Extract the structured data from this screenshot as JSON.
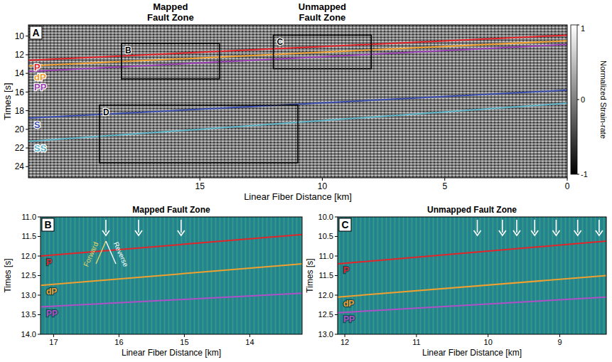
{
  "chart_data": [
    {
      "type": "line",
      "letter": "A",
      "x_label": "Linear Fiber Distance [km]",
      "y_label": "Times [s]",
      "xlim": [
        22,
        0
      ],
      "ylim": [
        8.8,
        25.2
      ],
      "xticks": [
        15,
        10,
        5,
        0
      ],
      "yticks": [
        10,
        12,
        14,
        16,
        18,
        20,
        22,
        24
      ],
      "x": [
        22,
        0
      ],
      "series": [
        {
          "name": "P",
          "color": "#e3242b",
          "values": [
            12.6,
            9.9
          ]
        },
        {
          "name": "dP",
          "color": "#f0a030",
          "values": [
            13.2,
            10.5
          ]
        },
        {
          "name": "PP",
          "color": "#9b3fb5",
          "values": [
            13.8,
            10.9
          ]
        },
        {
          "name": "S",
          "color": "#3b4fb0",
          "values": [
            18.8,
            15.8
          ]
        },
        {
          "name": "SS",
          "color": "#5fb5c8",
          "values": [
            21.3,
            17.2
          ]
        }
      ],
      "boxes": [
        {
          "label": "B",
          "x": [
            18.2,
            14.2
          ],
          "y": [
            10.8,
            14.6
          ]
        },
        {
          "label": "C",
          "x": [
            12.0,
            8.0
          ],
          "y": [
            9.9,
            13.5
          ]
        },
        {
          "label": "D",
          "x": [
            19.1,
            11.0
          ],
          "y": [
            17.4,
            23.6
          ]
        }
      ],
      "annotations": [
        {
          "text": "Mapped Fault Zone",
          "x": 16.2
        },
        {
          "text": "Unmapped Fault Zone",
          "x": 10.0
        }
      ],
      "colorbar": {
        "range": [
          -1,
          1
        ],
        "ticks": [
          -1,
          0,
          1
        ],
        "label": "Normalized Strain-rate"
      }
    },
    {
      "type": "line",
      "letter": "B",
      "title": "Mapped Fault Zone",
      "x_label": "Linear Fiber Distance [km]",
      "y_label": "Times [s]",
      "xlim": [
        17.2,
        13.2
      ],
      "ylim": [
        11.0,
        14.0
      ],
      "xticks": [
        17,
        16,
        15,
        14
      ],
      "yticks": [
        {
          "value": 11,
          "label": "11.0"
        },
        {
          "value": 11.5,
          "label": "11.5"
        },
        {
          "value": 12,
          "label": "12.0"
        },
        {
          "value": 12.5,
          "label": "12.5"
        },
        {
          "value": 13,
          "label": "13.0"
        },
        {
          "value": 13.5,
          "label": "13.5"
        },
        {
          "value": 14,
          "label": "14.0"
        }
      ],
      "x": [
        17.2,
        13.2
      ],
      "series": [
        {
          "name": "P",
          "color": "#e3242b",
          "values": [
            12.0,
            11.45
          ]
        },
        {
          "name": "dP",
          "color": "#f0a030",
          "values": [
            12.75,
            12.2
          ]
        },
        {
          "name": "PP",
          "color": "#b04fc8",
          "values": [
            13.3,
            12.95
          ]
        }
      ],
      "arrows": [
        16.2,
        15.7,
        15.05
      ],
      "annotations": [
        {
          "text": "Forward",
          "color": "#e6d36a"
        },
        {
          "text": "Reverse",
          "color": "#ffffff"
        }
      ]
    },
    {
      "type": "line",
      "letter": "C",
      "title": "Unmapped Fault Zone",
      "x_label": "Linear Fiber Distance [km]",
      "y_label": "Times [s]",
      "xlim": [
        12.1,
        8.35
      ],
      "ylim": [
        10.0,
        13.0
      ],
      "xticks": [
        12,
        11,
        10,
        9
      ],
      "yticks": [
        {
          "value": 10,
          "label": "10.0"
        },
        {
          "value": 10.5,
          "label": "10.5"
        },
        {
          "value": 11,
          "label": "11.0"
        },
        {
          "value": 11.5,
          "label": "11.5"
        },
        {
          "value": 12,
          "label": "12.0"
        },
        {
          "value": 12.5,
          "label": "12.5"
        },
        {
          "value": 13,
          "label": "13.0"
        }
      ],
      "x": [
        12.1,
        8.35
      ],
      "series": [
        {
          "name": "P",
          "color": "#e3242b",
          "values": [
            11.2,
            10.62
          ]
        },
        {
          "name": "dP",
          "color": "#f0a030",
          "values": [
            12.05,
            11.5
          ]
        },
        {
          "name": "PP",
          "color": "#b04fc8",
          "values": [
            12.45,
            12.05
          ]
        }
      ],
      "arrows": [
        10.15,
        9.8,
        9.6,
        9.35,
        9.05,
        8.75,
        8.45
      ]
    }
  ]
}
